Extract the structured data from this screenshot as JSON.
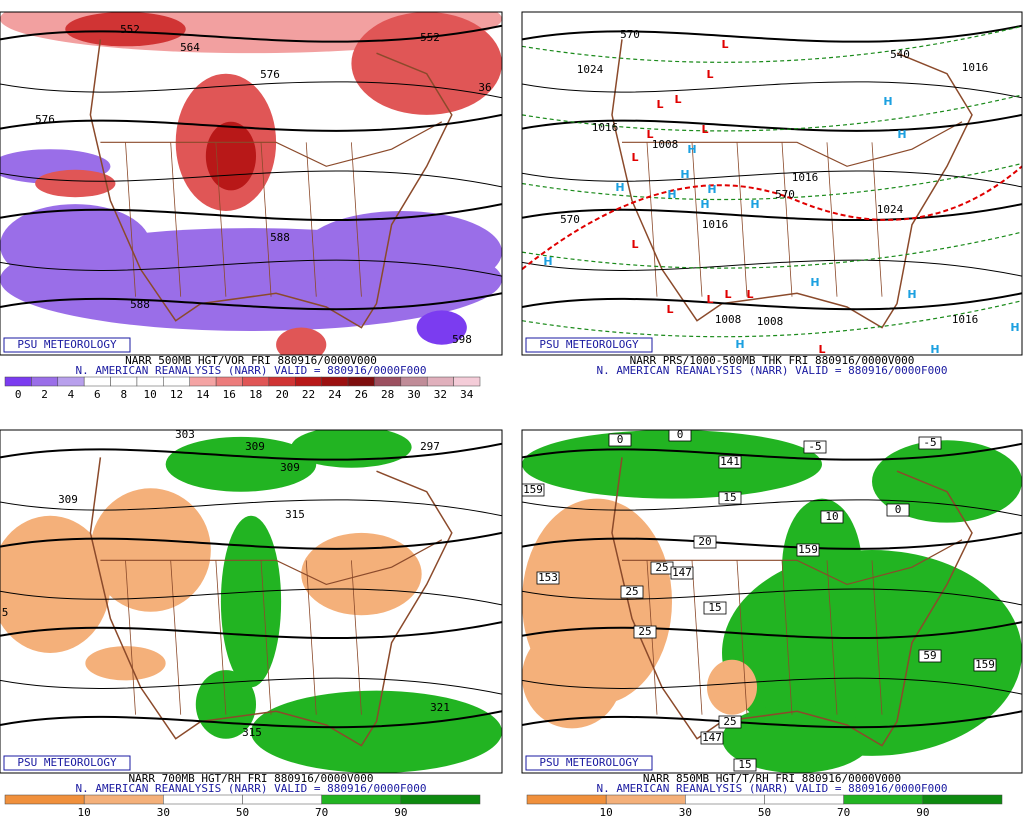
{
  "panels": [
    {
      "source": "PSU METEOROLOGY",
      "title": "NARR 500MB HGT/VOR FRI 880916/0000V000",
      "subtitle": "N. AMERICAN REANALYSIS (NARR) VALID = 880916/0000F000",
      "legend": {
        "ticks": [
          0,
          2,
          4,
          6,
          8,
          10,
          12,
          14,
          16,
          18,
          20,
          22,
          24,
          26,
          28,
          30,
          32,
          34
        ],
        "colors": [
          "#7b3cf0",
          "#9a6ee8",
          "#b8a0ec",
          "#ffffff",
          "#ffffff",
          "#ffffff",
          "#ffffff",
          "#f4a4a4",
          "#ec7c7c",
          "#e05656",
          "#d03434",
          "#b81818",
          "#9c1010",
          "#7e0e0e",
          "#9c5060",
          "#c08c98",
          "#e0b0bc",
          "#f4ccd8"
        ]
      },
      "labels": [
        {
          "text": "552"
        },
        {
          "text": "564"
        },
        {
          "text": "576"
        },
        {
          "text": "552"
        },
        {
          "text": "576"
        },
        {
          "text": "588"
        },
        {
          "text": "588"
        },
        {
          "text": "598"
        },
        {
          "text": "36"
        }
      ]
    },
    {
      "source": "PSU METEOROLOGY",
      "title": "NARR PRS/1000-500MB THK FRI 880916/0000V000",
      "subtitle": "N. AMERICAN REANALYSIS (NARR) VALID = 880916/0000F000",
      "labels": [
        {
          "text": "570"
        },
        {
          "text": "540"
        },
        {
          "text": "1024"
        },
        {
          "text": "1016"
        },
        {
          "text": "1016"
        },
        {
          "text": "1008"
        },
        {
          "text": "1016"
        },
        {
          "text": "570"
        },
        {
          "text": "1024"
        },
        {
          "text": "1016"
        },
        {
          "text": "570"
        },
        {
          "text": "1008"
        },
        {
          "text": "1008"
        },
        {
          "text": "1016"
        }
      ],
      "lows": {
        "text": "L",
        "color": "#e00000"
      },
      "highs": {
        "text": "H",
        "color": "#1ca0e0"
      }
    },
    {
      "source": "PSU METEOROLOGY",
      "title": "NARR 700MB HGT/RH FRI 880916/0000V000",
      "subtitle": "N. AMERICAN REANALYSIS (NARR) VALID = 880916/0000F000",
      "legend": {
        "ticks": [
          10,
          30,
          50,
          70,
          90
        ],
        "colors": [
          "#f0903c",
          "#f4b07a",
          "#ffffff",
          "#ffffff",
          "#22b422",
          "#0e8a10"
        ]
      },
      "labels": [
        {
          "text": "309"
        },
        {
          "text": "309"
        },
        {
          "text": "303"
        },
        {
          "text": "309"
        },
        {
          "text": "315"
        },
        {
          "text": "297"
        },
        {
          "text": "321"
        },
        {
          "text": "315"
        },
        {
          "text": "5"
        }
      ]
    },
    {
      "source": "PSU METEOROLOGY",
      "title": "NARR 850MB HGT/T/RH FRI 880916/0000V000",
      "subtitle": "N. AMERICAN REANALYSIS (NARR) VALID = 880916/0000F000",
      "legend": {
        "ticks": [
          10,
          30,
          50,
          70,
          90
        ],
        "colors": [
          "#f0903c",
          "#f4b07a",
          "#ffffff",
          "#ffffff",
          "#22b422",
          "#0e8a10"
        ]
      },
      "labels": [
        {
          "text": "159"
        },
        {
          "text": "153"
        },
        {
          "text": "141"
        },
        {
          "text": "15"
        },
        {
          "text": "25"
        },
        {
          "text": "25"
        },
        {
          "text": "25"
        },
        {
          "text": "15"
        },
        {
          "text": "147"
        },
        {
          "text": "20"
        },
        {
          "text": "10"
        },
        {
          "text": "-5"
        },
        {
          "text": "-5"
        },
        {
          "text": "0"
        },
        {
          "text": "0"
        },
        {
          "text": "0"
        },
        {
          "text": "159"
        },
        {
          "text": "159"
        },
        {
          "text": "59"
        },
        {
          "text": "25"
        },
        {
          "text": "147"
        },
        {
          "text": "15"
        }
      ]
    }
  ]
}
